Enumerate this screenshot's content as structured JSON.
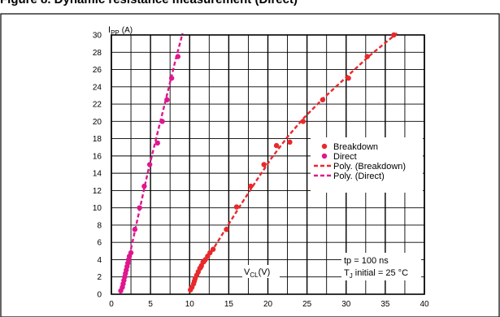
{
  "heading": "Figure 8. Dynamic resistance measurement (Direct)",
  "chart_data": {
    "type": "scatter",
    "xlabel": "V",
    "xlabel_sub": "CL",
    "xlabel_unit": "(V)",
    "ylabel": "I",
    "ylabel_sub": "PP",
    "ylabel_unit": "(A)",
    "xlim": [
      0,
      40
    ],
    "ylim": [
      0,
      30
    ],
    "x_ticks": [
      0,
      5,
      10,
      15,
      20,
      25,
      30,
      35,
      40
    ],
    "y_ticks": [
      0,
      2,
      4,
      6,
      8,
      10,
      12,
      14,
      16,
      18,
      20,
      22,
      24,
      26,
      28,
      30
    ],
    "x_minor_step": 2.5,
    "grid": true,
    "legend_placement": "right",
    "series": [
      {
        "name": "Breakdown",
        "kind": "points",
        "color": "#e8292c",
        "points": [
          [
            10.1,
            0.5
          ],
          [
            10.3,
            0.8
          ],
          [
            10.5,
            1.2
          ],
          [
            10.6,
            1.5
          ],
          [
            10.7,
            1.8
          ],
          [
            10.9,
            2.2
          ],
          [
            11.1,
            2.6
          ],
          [
            11.3,
            3.0
          ],
          [
            11.5,
            3.3
          ],
          [
            11.7,
            3.7
          ],
          [
            12.0,
            4.0
          ],
          [
            12.3,
            4.4
          ],
          [
            12.6,
            4.8
          ],
          [
            13.0,
            5.2
          ],
          [
            14.7,
            7.5
          ],
          [
            16.0,
            10.1
          ],
          [
            17.8,
            12.5
          ],
          [
            19.5,
            15.0
          ],
          [
            21.1,
            17.2
          ],
          [
            22.8,
            17.6
          ],
          [
            24.5,
            20.0
          ],
          [
            27.0,
            22.5
          ],
          [
            30.3,
            25.0
          ],
          [
            32.7,
            27.5
          ],
          [
            36.1,
            30.0
          ]
        ]
      },
      {
        "name": "Direct",
        "kind": "points",
        "color": "#e0168e",
        "points": [
          [
            1.2,
            0.4
          ],
          [
            1.4,
            0.8
          ],
          [
            1.5,
            1.2
          ],
          [
            1.6,
            1.6
          ],
          [
            1.7,
            2.0
          ],
          [
            1.8,
            2.4
          ],
          [
            1.9,
            2.8
          ],
          [
            2.0,
            3.2
          ],
          [
            2.1,
            3.6
          ],
          [
            2.2,
            4.0
          ],
          [
            2.3,
            4.4
          ],
          [
            2.5,
            4.8
          ],
          [
            3.0,
            7.5
          ],
          [
            3.6,
            10.0
          ],
          [
            4.2,
            12.5
          ],
          [
            4.9,
            15.0
          ],
          [
            5.9,
            17.5
          ],
          [
            6.5,
            20.0
          ],
          [
            7.1,
            22.5
          ],
          [
            7.7,
            25.0
          ],
          [
            8.5,
            27.5
          ]
        ]
      },
      {
        "name": "Poly. (Breakdown)",
        "kind": "dashed-line",
        "color": "#e8292c",
        "points": [
          [
            10.0,
            0.2
          ],
          [
            11.0,
            2.1
          ],
          [
            12.5,
            4.5
          ],
          [
            14.5,
            7.4
          ],
          [
            16.5,
            10.3
          ],
          [
            18.5,
            13.1
          ],
          [
            20.5,
            15.8
          ],
          [
            22.5,
            18.2
          ],
          [
            24.5,
            20.3
          ],
          [
            27.0,
            22.6
          ],
          [
            30.0,
            25.1
          ],
          [
            33.0,
            27.6
          ],
          [
            36.5,
            30.2
          ]
        ]
      },
      {
        "name": "Poly. (Direct)",
        "kind": "dashed-line",
        "color": "#e0168e",
        "points": [
          [
            1.1,
            0.1
          ],
          [
            1.6,
            1.8
          ],
          [
            2.2,
            4.0
          ],
          [
            3.0,
            7.3
          ],
          [
            3.8,
            10.6
          ],
          [
            4.6,
            13.9
          ],
          [
            5.5,
            17.2
          ],
          [
            6.4,
            20.5
          ],
          [
            7.3,
            23.8
          ],
          [
            8.2,
            27.1
          ],
          [
            9.1,
            30.2
          ]
        ]
      }
    ],
    "annotations": {
      "pulse_line1": "tp = 100 ns",
      "pulse_line2_main": "T",
      "pulse_line2_sub": "J",
      "pulse_line2_rest": " initial = 25 °C"
    }
  }
}
